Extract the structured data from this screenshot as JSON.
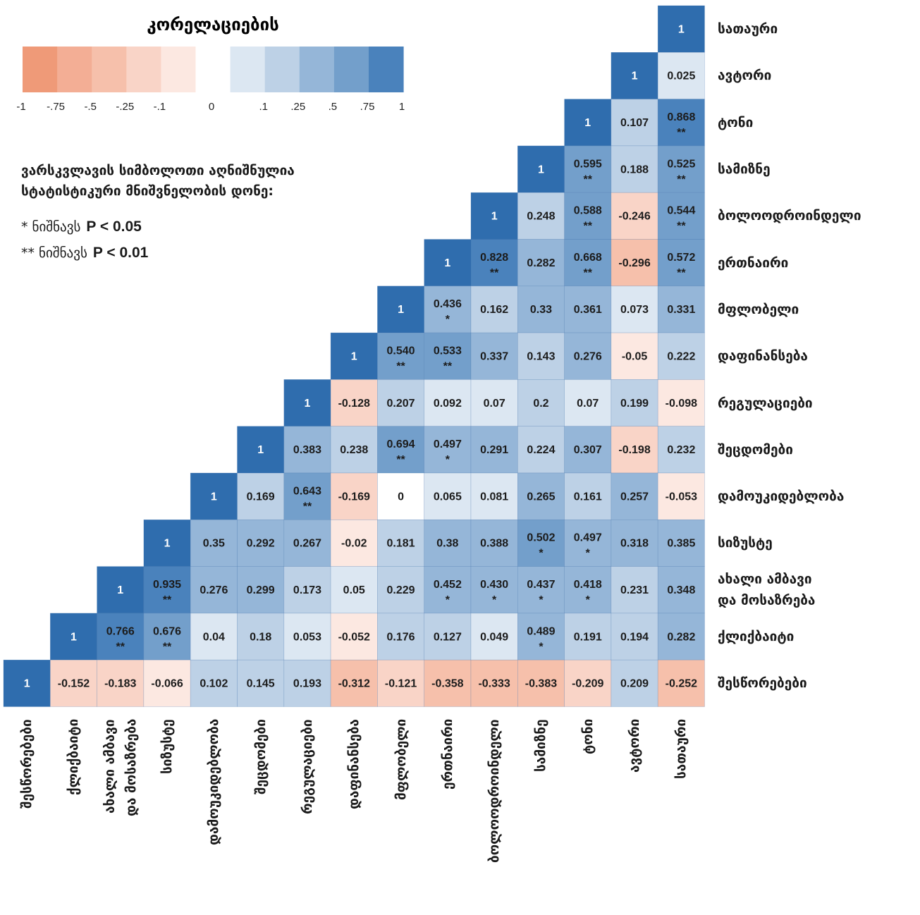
{
  "chart_data": {
    "type": "heatmap",
    "rows": [
      "სათაური",
      "ავტორი",
      "ტონი",
      "სამიზნე",
      "ბოლოოდროინდელი",
      "ერთნაირი",
      "მფლობელი",
      "დაფინანსება",
      "რეგულაციები",
      "შეცდომები",
      "დამოუკიდებლობა",
      "სიზუსტე",
      "ახალი ამბავი\nდა მოსაზრება",
      "ქლიქბაიტი",
      "შესწორებები"
    ],
    "columns": [
      "შესწორებები",
      "ქლიქბაიტი",
      "ახალი ამბავი\nდა მოსაზრება",
      "სიზუსტე",
      "დამოუკიდებლობა",
      "შეცდომები",
      "რეგულაციები",
      "დაფინანსება",
      "მფლობელი",
      "ერთნაირი",
      "ბოლოოდროინდელი",
      "სამიზნე",
      "ტონი",
      "ავტორი",
      "სათაური"
    ],
    "values": [
      [
        null,
        null,
        null,
        null,
        null,
        null,
        null,
        null,
        null,
        null,
        null,
        null,
        null,
        null,
        1
      ],
      [
        null,
        null,
        null,
        null,
        null,
        null,
        null,
        null,
        null,
        null,
        null,
        null,
        null,
        1,
        0.025
      ],
      [
        null,
        null,
        null,
        null,
        null,
        null,
        null,
        null,
        null,
        null,
        null,
        null,
        1,
        0.107,
        0.868
      ],
      [
        null,
        null,
        null,
        null,
        null,
        null,
        null,
        null,
        null,
        null,
        null,
        1,
        0.595,
        0.188,
        0.525
      ],
      [
        null,
        null,
        null,
        null,
        null,
        null,
        null,
        null,
        null,
        null,
        1,
        0.248,
        0.588,
        -0.246,
        0.544
      ],
      [
        null,
        null,
        null,
        null,
        null,
        null,
        null,
        null,
        null,
        1,
        0.828,
        0.282,
        0.668,
        -0.296,
        0.572
      ],
      [
        null,
        null,
        null,
        null,
        null,
        null,
        null,
        null,
        1,
        0.436,
        0.162,
        0.33,
        0.361,
        0.073,
        0.331
      ],
      [
        null,
        null,
        null,
        null,
        null,
        null,
        null,
        1,
        0.54,
        0.533,
        0.337,
        0.143,
        0.276,
        -0.05,
        0.222
      ],
      [
        null,
        null,
        null,
        null,
        null,
        null,
        1,
        -0.128,
        0.207,
        0.092,
        0.07,
        0.2,
        0.07,
        0.199,
        -0.098
      ],
      [
        null,
        null,
        null,
        null,
        null,
        1,
        0.383,
        0.238,
        0.694,
        0.497,
        0.291,
        0.224,
        0.307,
        -0.198,
        0.232
      ],
      [
        null,
        null,
        null,
        null,
        1,
        0.169,
        0.643,
        -0.169,
        0,
        0.065,
        0.081,
        0.265,
        0.161,
        0.257,
        -0.053
      ],
      [
        null,
        null,
        null,
        1,
        0.35,
        0.292,
        0.267,
        -0.02,
        0.181,
        0.38,
        0.388,
        0.502,
        0.497,
        0.318,
        0.385
      ],
      [
        null,
        null,
        1,
        0.935,
        0.276,
        0.299,
        0.173,
        0.05,
        0.229,
        0.452,
        0.43,
        0.437,
        0.418,
        0.231,
        0.348
      ],
      [
        null,
        1,
        0.766,
        0.676,
        0.04,
        0.18,
        0.053,
        -0.052,
        0.176,
        0.127,
        0.049,
        0.489,
        0.191,
        0.194,
        0.282
      ],
      [
        1,
        -0.152,
        -0.183,
        -0.066,
        0.102,
        0.145,
        0.193,
        -0.312,
        -0.121,
        -0.358,
        -0.333,
        -0.383,
        -0.209,
        0.209,
        -0.252
      ]
    ],
    "value_labels": [
      [
        null,
        null,
        null,
        null,
        null,
        null,
        null,
        null,
        null,
        null,
        null,
        null,
        null,
        null,
        null
      ],
      [
        null,
        null,
        null,
        null,
        null,
        null,
        null,
        null,
        null,
        null,
        null,
        null,
        null,
        null,
        null
      ],
      [
        null,
        null,
        null,
        null,
        null,
        null,
        null,
        null,
        null,
        null,
        null,
        null,
        null,
        null,
        null
      ],
      [
        null,
        null,
        null,
        null,
        null,
        null,
        null,
        null,
        null,
        null,
        null,
        null,
        null,
        null,
        null
      ],
      [
        null,
        null,
        null,
        null,
        null,
        null,
        null,
        null,
        null,
        null,
        null,
        null,
        null,
        null,
        null
      ],
      [
        null,
        null,
        null,
        null,
        null,
        null,
        null,
        null,
        null,
        null,
        null,
        null,
        null,
        null,
        null
      ],
      [
        null,
        null,
        null,
        null,
        null,
        null,
        null,
        null,
        null,
        null,
        null,
        null,
        null,
        null,
        null
      ],
      [
        null,
        null,
        null,
        null,
        null,
        null,
        null,
        null,
        "0.540",
        null,
        null,
        null,
        null,
        null,
        null
      ],
      [
        null,
        null,
        null,
        null,
        null,
        null,
        null,
        null,
        null,
        null,
        null,
        null,
        null,
        null,
        null
      ],
      [
        null,
        null,
        null,
        null,
        null,
        null,
        null,
        null,
        null,
        null,
        null,
        null,
        null,
        null,
        null
      ],
      [
        null,
        null,
        null,
        null,
        null,
        null,
        null,
        null,
        null,
        null,
        null,
        null,
        null,
        null,
        null
      ],
      [
        null,
        null,
        null,
        null,
        null,
        null,
        null,
        null,
        null,
        null,
        null,
        null,
        null,
        null,
        null
      ],
      [
        null,
        null,
        null,
        null,
        null,
        null,
        null,
        null,
        null,
        null,
        "0.430",
        null,
        null,
        null,
        null
      ],
      [
        null,
        null,
        null,
        null,
        null,
        null,
        null,
        null,
        null,
        null,
        null,
        null,
        null,
        null,
        null
      ],
      [
        null,
        null,
        null,
        null,
        null,
        null,
        null,
        null,
        null,
        null,
        null,
        null,
        null,
        null,
        null
      ]
    ],
    "significance": [
      [
        null,
        null,
        null,
        null,
        null,
        null,
        null,
        null,
        null,
        null,
        null,
        null,
        null,
        null,
        null
      ],
      [
        null,
        null,
        null,
        null,
        null,
        null,
        null,
        null,
        null,
        null,
        null,
        null,
        null,
        null,
        null
      ],
      [
        null,
        null,
        null,
        null,
        null,
        null,
        null,
        null,
        null,
        null,
        null,
        null,
        null,
        null,
        "**"
      ],
      [
        null,
        null,
        null,
        null,
        null,
        null,
        null,
        null,
        null,
        null,
        null,
        null,
        "**",
        null,
        "**"
      ],
      [
        null,
        null,
        null,
        null,
        null,
        null,
        null,
        null,
        null,
        null,
        null,
        null,
        "**",
        null,
        "**"
      ],
      [
        null,
        null,
        null,
        null,
        null,
        null,
        null,
        null,
        null,
        null,
        "**",
        null,
        "**",
        null,
        "**"
      ],
      [
        null,
        null,
        null,
        null,
        null,
        null,
        null,
        null,
        null,
        "*",
        null,
        null,
        null,
        null,
        null
      ],
      [
        null,
        null,
        null,
        null,
        null,
        null,
        null,
        null,
        "**",
        "**",
        null,
        null,
        null,
        null,
        null
      ],
      [
        null,
        null,
        null,
        null,
        null,
        null,
        null,
        null,
        null,
        null,
        null,
        null,
        null,
        null,
        null
      ],
      [
        null,
        null,
        null,
        null,
        null,
        null,
        null,
        null,
        "**",
        "*",
        null,
        null,
        null,
        null,
        null
      ],
      [
        null,
        null,
        null,
        null,
        null,
        null,
        "**",
        null,
        null,
        null,
        null,
        null,
        null,
        null,
        null
      ],
      [
        null,
        null,
        null,
        null,
        null,
        null,
        null,
        null,
        null,
        null,
        null,
        "*",
        "*",
        null,
        null
      ],
      [
        null,
        null,
        null,
        "**",
        null,
        null,
        null,
        null,
        null,
        "*",
        "*",
        "*",
        "*",
        null,
        null
      ],
      [
        null,
        null,
        "**",
        "**",
        null,
        null,
        null,
        null,
        null,
        null,
        null,
        "*",
        null,
        null,
        null
      ],
      [
        null,
        null,
        null,
        null,
        null,
        null,
        null,
        null,
        null,
        null,
        null,
        null,
        null,
        null,
        null
      ]
    ],
    "diagonal_color": "#2f6dae",
    "legend": {
      "title": "კორელაციების",
      "colors": [
        "#ef9a78",
        "#f3ae95",
        "#f6c0ab",
        "#f9d4c7",
        "#fce8e1",
        "#ffffff",
        "#dce7f2",
        "#bdd1e6",
        "#95b6d8",
        "#739fcb",
        "#4a82bc"
      ],
      "ticks": [
        -1,
        {
          "value": -0.75,
          "label": "-.75"
        },
        {
          "value": -0.5,
          "label": "-.5"
        },
        {
          "value": -0.25,
          "label": "-.25"
        },
        {
          "value": -0.1,
          "label": "-.1"
        },
        0,
        {
          "value": 0.1,
          "label": ".1"
        },
        {
          "value": 0.25,
          "label": ".25"
        },
        {
          "value": 0.5,
          "label": ".5"
        },
        {
          "value": 0.75,
          "label": ".75"
        },
        1
      ]
    },
    "note_heading": [
      "ვარსკვლავის სიმბოლოთი აღნიშნულია",
      "სტატისტიკური მნიშვნელობის დონე:"
    ],
    "significance_notes": [
      {
        "symbol_text": "* ნიშნავს",
        "threshold": "P < 0.05"
      },
      {
        "symbol_text": "** ნიშნავს",
        "threshold": "P < 0.01"
      }
    ]
  }
}
